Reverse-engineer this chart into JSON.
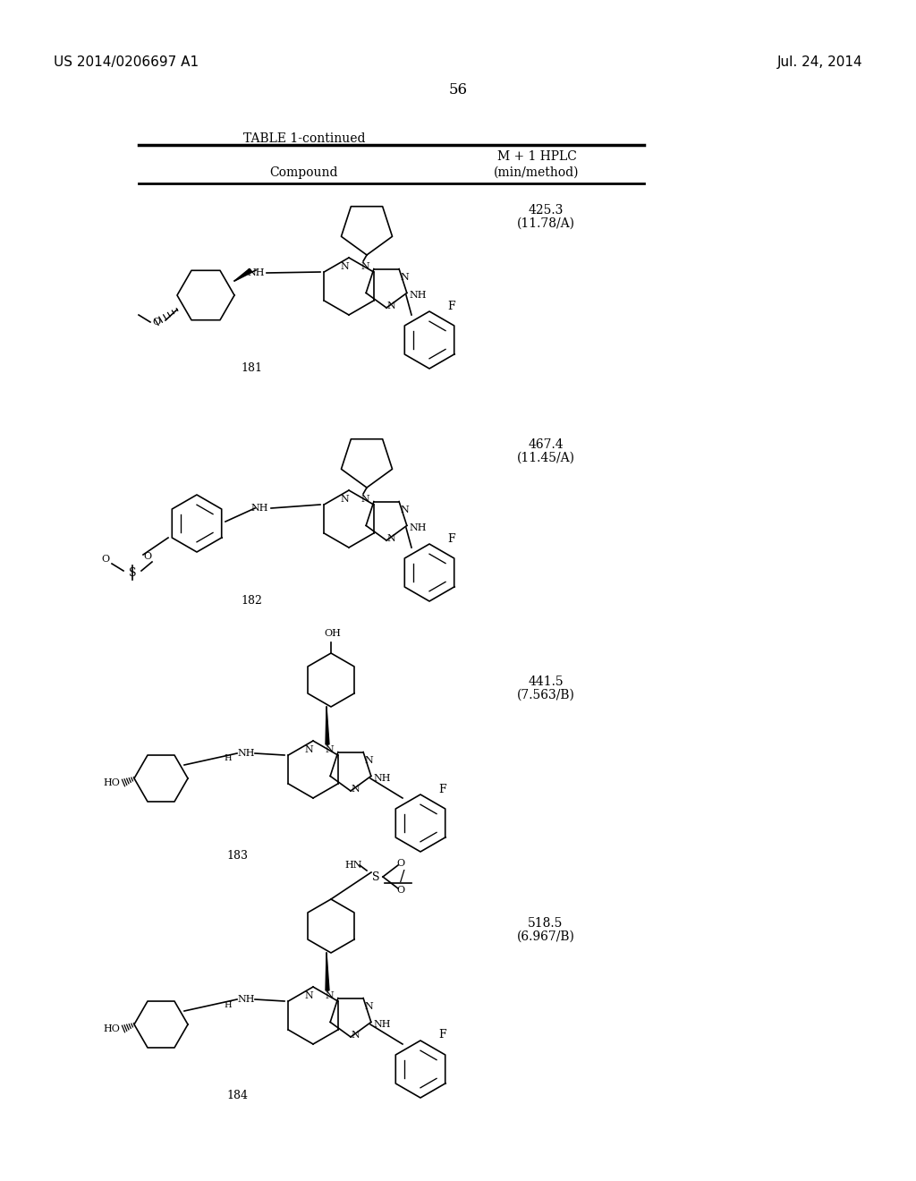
{
  "page_number": "56",
  "left_header": "US 2014/0206697 A1",
  "right_header": "Jul. 24, 2014",
  "table_title": "TABLE 1-continued",
  "col1_header": "Compound",
  "col2_header_line1": "M + 1 HPLC",
  "col2_header_line2": "(min/method)",
  "compounds": [
    {
      "number": "181",
      "value": "425.3",
      "method": "(11.78/A)"
    },
    {
      "number": "182",
      "value": "467.4",
      "method": "(11.45/A)"
    },
    {
      "number": "183",
      "value": "441.5",
      "method": "(7.563/B)"
    },
    {
      "number": "184",
      "value": "518.5",
      "method": "(6.967/B)"
    }
  ],
  "bg_color": "#ffffff",
  "text_color": "#000000",
  "line_color": "#000000"
}
